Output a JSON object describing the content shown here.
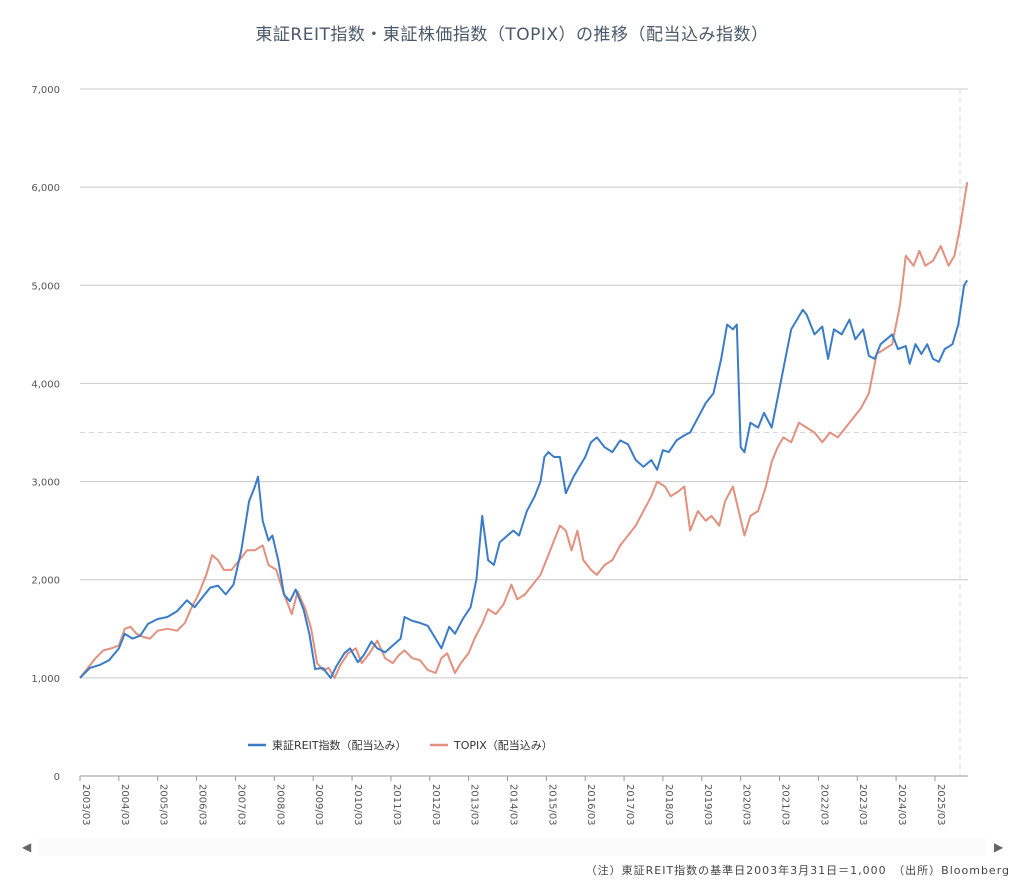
{
  "page": {
    "title": "東証REIT指数・東証株価指数（TOPIX）の推移（配当込み指数）",
    "note": "（注）東証REIT指数の基準日2003年3月31日＝1,000　（出所）Bloomberg"
  },
  "colors": {
    "reit": "#3a7cc8",
    "topix": "#e3907e",
    "grid": "#c8c8c8",
    "ref": "#d8d8d8",
    "axis": "#999999"
  },
  "icons": {
    "scroll_left": "triangle-left",
    "scroll_right": "triangle-right"
  },
  "chart_data": {
    "type": "line",
    "title": "東証REIT指数・東証株価指数（TOPIX）の推移（配当込み指数）",
    "ylim": [
      0,
      7000
    ],
    "yticks": [
      "0",
      "1,000",
      "2,000",
      "3,000",
      "4,000",
      "5,000",
      "6,000",
      "7,000"
    ],
    "xticks": [
      "2003/03",
      "2004/03",
      "2005/03",
      "2006/03",
      "2007/03",
      "2008/03",
      "2009/03",
      "2010/03",
      "2011/03",
      "2012/03",
      "2013/03",
      "2014/03",
      "2015/03",
      "2016/03",
      "2017/03",
      "2018/03",
      "2019/03",
      "2020/03",
      "2021/03",
      "2022/03",
      "2023/03",
      "2024/03",
      "2025/03"
    ],
    "grid": true,
    "legend_position": "bottom-left",
    "reference_line_y": 3500,
    "x_start": "2003/03",
    "x_end": "2025/08",
    "series": [
      {
        "name": "東証REIT指数（配当込み）",
        "points": [
          [
            2003.25,
            1000
          ],
          [
            2003.5,
            1100
          ],
          [
            2003.75,
            1130
          ],
          [
            2004.0,
            1180
          ],
          [
            2004.25,
            1300
          ],
          [
            2004.4,
            1450
          ],
          [
            2004.6,
            1400
          ],
          [
            2004.8,
            1430
          ],
          [
            2005.0,
            1550
          ],
          [
            2005.25,
            1600
          ],
          [
            2005.5,
            1620
          ],
          [
            2005.75,
            1680
          ],
          [
            2006.0,
            1790
          ],
          [
            2006.2,
            1720
          ],
          [
            2006.4,
            1820
          ],
          [
            2006.6,
            1920
          ],
          [
            2006.8,
            1940
          ],
          [
            2007.0,
            1850
          ],
          [
            2007.2,
            1950
          ],
          [
            2007.4,
            2300
          ],
          [
            2007.6,
            2800
          ],
          [
            2007.75,
            2950
          ],
          [
            2007.83,
            3050
          ],
          [
            2007.95,
            2600
          ],
          [
            2008.1,
            2400
          ],
          [
            2008.2,
            2450
          ],
          [
            2008.35,
            2200
          ],
          [
            2008.5,
            1850
          ],
          [
            2008.65,
            1780
          ],
          [
            2008.8,
            1900
          ],
          [
            2009.0,
            1700
          ],
          [
            2009.15,
            1450
          ],
          [
            2009.3,
            1090
          ],
          [
            2009.5,
            1100
          ],
          [
            2009.7,
            1000
          ],
          [
            2009.85,
            1120
          ],
          [
            2010.05,
            1250
          ],
          [
            2010.2,
            1300
          ],
          [
            2010.4,
            1160
          ],
          [
            2010.55,
            1230
          ],
          [
            2010.75,
            1370
          ],
          [
            2010.9,
            1300
          ],
          [
            2011.1,
            1260
          ],
          [
            2011.3,
            1330
          ],
          [
            2011.5,
            1400
          ],
          [
            2011.6,
            1620
          ],
          [
            2011.8,
            1580
          ],
          [
            2012.0,
            1560
          ],
          [
            2012.2,
            1530
          ],
          [
            2012.4,
            1400
          ],
          [
            2012.55,
            1300
          ],
          [
            2012.75,
            1520
          ],
          [
            2012.9,
            1450
          ],
          [
            2013.1,
            1600
          ],
          [
            2013.3,
            1720
          ],
          [
            2013.45,
            2000
          ],
          [
            2013.6,
            2650
          ],
          [
            2013.75,
            2200
          ],
          [
            2013.9,
            2150
          ],
          [
            2014.05,
            2380
          ],
          [
            2014.25,
            2450
          ],
          [
            2014.4,
            2500
          ],
          [
            2014.55,
            2450
          ],
          [
            2014.75,
            2700
          ],
          [
            2014.95,
            2850
          ],
          [
            2015.1,
            3000
          ],
          [
            2015.2,
            3250
          ],
          [
            2015.3,
            3300
          ],
          [
            2015.45,
            3250
          ],
          [
            2015.6,
            3250
          ],
          [
            2015.75,
            2880
          ],
          [
            2015.95,
            3050
          ],
          [
            2016.1,
            3150
          ],
          [
            2016.25,
            3250
          ],
          [
            2016.4,
            3400
          ],
          [
            2016.55,
            3450
          ],
          [
            2016.75,
            3350
          ],
          [
            2016.95,
            3300
          ],
          [
            2017.15,
            3420
          ],
          [
            2017.35,
            3380
          ],
          [
            2017.55,
            3220
          ],
          [
            2017.75,
            3150
          ],
          [
            2017.95,
            3220
          ],
          [
            2018.1,
            3120
          ],
          [
            2018.25,
            3320
          ],
          [
            2018.4,
            3300
          ],
          [
            2018.6,
            3420
          ],
          [
            2018.8,
            3470
          ],
          [
            2018.95,
            3500
          ],
          [
            2019.15,
            3650
          ],
          [
            2019.35,
            3800
          ],
          [
            2019.55,
            3900
          ],
          [
            2019.75,
            4250
          ],
          [
            2019.9,
            4600
          ],
          [
            2020.05,
            4550
          ],
          [
            2020.15,
            4600
          ],
          [
            2020.25,
            3350
          ],
          [
            2020.35,
            3300
          ],
          [
            2020.5,
            3600
          ],
          [
            2020.7,
            3550
          ],
          [
            2020.85,
            3700
          ],
          [
            2021.05,
            3550
          ],
          [
            2021.2,
            3850
          ],
          [
            2021.4,
            4250
          ],
          [
            2021.55,
            4550
          ],
          [
            2021.7,
            4650
          ],
          [
            2021.85,
            4750
          ],
          [
            2021.95,
            4700
          ],
          [
            2022.15,
            4500
          ],
          [
            2022.35,
            4580
          ],
          [
            2022.5,
            4250
          ],
          [
            2022.65,
            4550
          ],
          [
            2022.85,
            4500
          ],
          [
            2023.05,
            4650
          ],
          [
            2023.2,
            4450
          ],
          [
            2023.4,
            4550
          ],
          [
            2023.55,
            4280
          ],
          [
            2023.7,
            4250
          ],
          [
            2023.85,
            4400
          ],
          [
            2024.0,
            4450
          ],
          [
            2024.15,
            4500
          ],
          [
            2024.3,
            4350
          ],
          [
            2024.5,
            4380
          ],
          [
            2024.6,
            4200
          ],
          [
            2024.75,
            4400
          ],
          [
            2024.9,
            4300
          ],
          [
            2025.05,
            4400
          ],
          [
            2025.2,
            4250
          ],
          [
            2025.35,
            4220
          ],
          [
            2025.5,
            4350
          ],
          [
            2025.7,
            4400
          ],
          [
            2025.85,
            4600
          ],
          [
            2026.0,
            5000
          ],
          [
            2026.08,
            5050
          ]
        ]
      },
      {
        "name": "TOPIX（配当込み）",
        "points": [
          [
            2003.25,
            1000
          ],
          [
            2003.45,
            1100
          ],
          [
            2003.65,
            1200
          ],
          [
            2003.85,
            1280
          ],
          [
            2004.05,
            1300
          ],
          [
            2004.25,
            1330
          ],
          [
            2004.4,
            1500
          ],
          [
            2004.55,
            1520
          ],
          [
            2004.7,
            1450
          ],
          [
            2004.85,
            1420
          ],
          [
            2005.05,
            1400
          ],
          [
            2005.25,
            1480
          ],
          [
            2005.5,
            1500
          ],
          [
            2005.75,
            1480
          ],
          [
            2005.95,
            1560
          ],
          [
            2006.1,
            1700
          ],
          [
            2006.3,
            1850
          ],
          [
            2006.5,
            2050
          ],
          [
            2006.65,
            2250
          ],
          [
            2006.8,
            2200
          ],
          [
            2006.95,
            2100
          ],
          [
            2007.15,
            2100
          ],
          [
            2007.35,
            2200
          ],
          [
            2007.55,
            2300
          ],
          [
            2007.75,
            2300
          ],
          [
            2007.95,
            2350
          ],
          [
            2008.1,
            2150
          ],
          [
            2008.3,
            2100
          ],
          [
            2008.5,
            1850
          ],
          [
            2008.7,
            1650
          ],
          [
            2008.85,
            1880
          ],
          [
            2009.05,
            1700
          ],
          [
            2009.2,
            1500
          ],
          [
            2009.35,
            1150
          ],
          [
            2009.5,
            1080
          ],
          [
            2009.65,
            1100
          ],
          [
            2009.8,
            1000
          ],
          [
            2009.95,
            1130
          ],
          [
            2010.15,
            1250
          ],
          [
            2010.35,
            1300
          ],
          [
            2010.5,
            1150
          ],
          [
            2010.7,
            1250
          ],
          [
            2010.9,
            1380
          ],
          [
            2011.1,
            1200
          ],
          [
            2011.3,
            1150
          ],
          [
            2011.45,
            1230
          ],
          [
            2011.6,
            1280
          ],
          [
            2011.8,
            1200
          ],
          [
            2012.0,
            1180
          ],
          [
            2012.2,
            1080
          ],
          [
            2012.4,
            1050
          ],
          [
            2012.55,
            1200
          ],
          [
            2012.7,
            1250
          ],
          [
            2012.9,
            1050
          ],
          [
            2013.05,
            1150
          ],
          [
            2013.25,
            1250
          ],
          [
            2013.4,
            1400
          ],
          [
            2013.6,
            1550
          ],
          [
            2013.75,
            1700
          ],
          [
            2013.95,
            1650
          ],
          [
            2014.15,
            1750
          ],
          [
            2014.35,
            1950
          ],
          [
            2014.5,
            1800
          ],
          [
            2014.7,
            1850
          ],
          [
            2014.9,
            1950
          ],
          [
            2015.1,
            2050
          ],
          [
            2015.3,
            2250
          ],
          [
            2015.45,
            2400
          ],
          [
            2015.6,
            2550
          ],
          [
            2015.75,
            2500
          ],
          [
            2015.9,
            2300
          ],
          [
            2016.05,
            2500
          ],
          [
            2016.2,
            2200
          ],
          [
            2016.4,
            2100
          ],
          [
            2016.55,
            2050
          ],
          [
            2016.75,
            2150
          ],
          [
            2016.95,
            2200
          ],
          [
            2017.15,
            2350
          ],
          [
            2017.35,
            2450
          ],
          [
            2017.55,
            2550
          ],
          [
            2017.75,
            2700
          ],
          [
            2017.95,
            2850
          ],
          [
            2018.1,
            3000
          ],
          [
            2018.3,
            2950
          ],
          [
            2018.45,
            2850
          ],
          [
            2018.65,
            2900
          ],
          [
            2018.8,
            2950
          ],
          [
            2018.95,
            2500
          ],
          [
            2019.15,
            2700
          ],
          [
            2019.35,
            2600
          ],
          [
            2019.5,
            2650
          ],
          [
            2019.7,
            2550
          ],
          [
            2019.85,
            2800
          ],
          [
            2020.05,
            2950
          ],
          [
            2020.2,
            2700
          ],
          [
            2020.35,
            2450
          ],
          [
            2020.5,
            2650
          ],
          [
            2020.7,
            2700
          ],
          [
            2020.9,
            2950
          ],
          [
            2021.05,
            3200
          ],
          [
            2021.2,
            3350
          ],
          [
            2021.35,
            3450
          ],
          [
            2021.55,
            3400
          ],
          [
            2021.75,
            3600
          ],
          [
            2021.95,
            3550
          ],
          [
            2022.15,
            3500
          ],
          [
            2022.35,
            3400
          ],
          [
            2022.55,
            3500
          ],
          [
            2022.75,
            3450
          ],
          [
            2022.95,
            3550
          ],
          [
            2023.15,
            3650
          ],
          [
            2023.35,
            3750
          ],
          [
            2023.55,
            3900
          ],
          [
            2023.75,
            4300
          ],
          [
            2023.95,
            4350
          ],
          [
            2024.15,
            4400
          ],
          [
            2024.35,
            4800
          ],
          [
            2024.5,
            5300
          ],
          [
            2024.7,
            5200
          ],
          [
            2024.85,
            5350
          ],
          [
            2025.0,
            5200
          ],
          [
            2025.2,
            5250
          ],
          [
            2025.4,
            5400
          ],
          [
            2025.6,
            5200
          ],
          [
            2025.75,
            5300
          ],
          [
            2025.9,
            5600
          ],
          [
            2026.08,
            6050
          ]
        ]
      }
    ]
  }
}
